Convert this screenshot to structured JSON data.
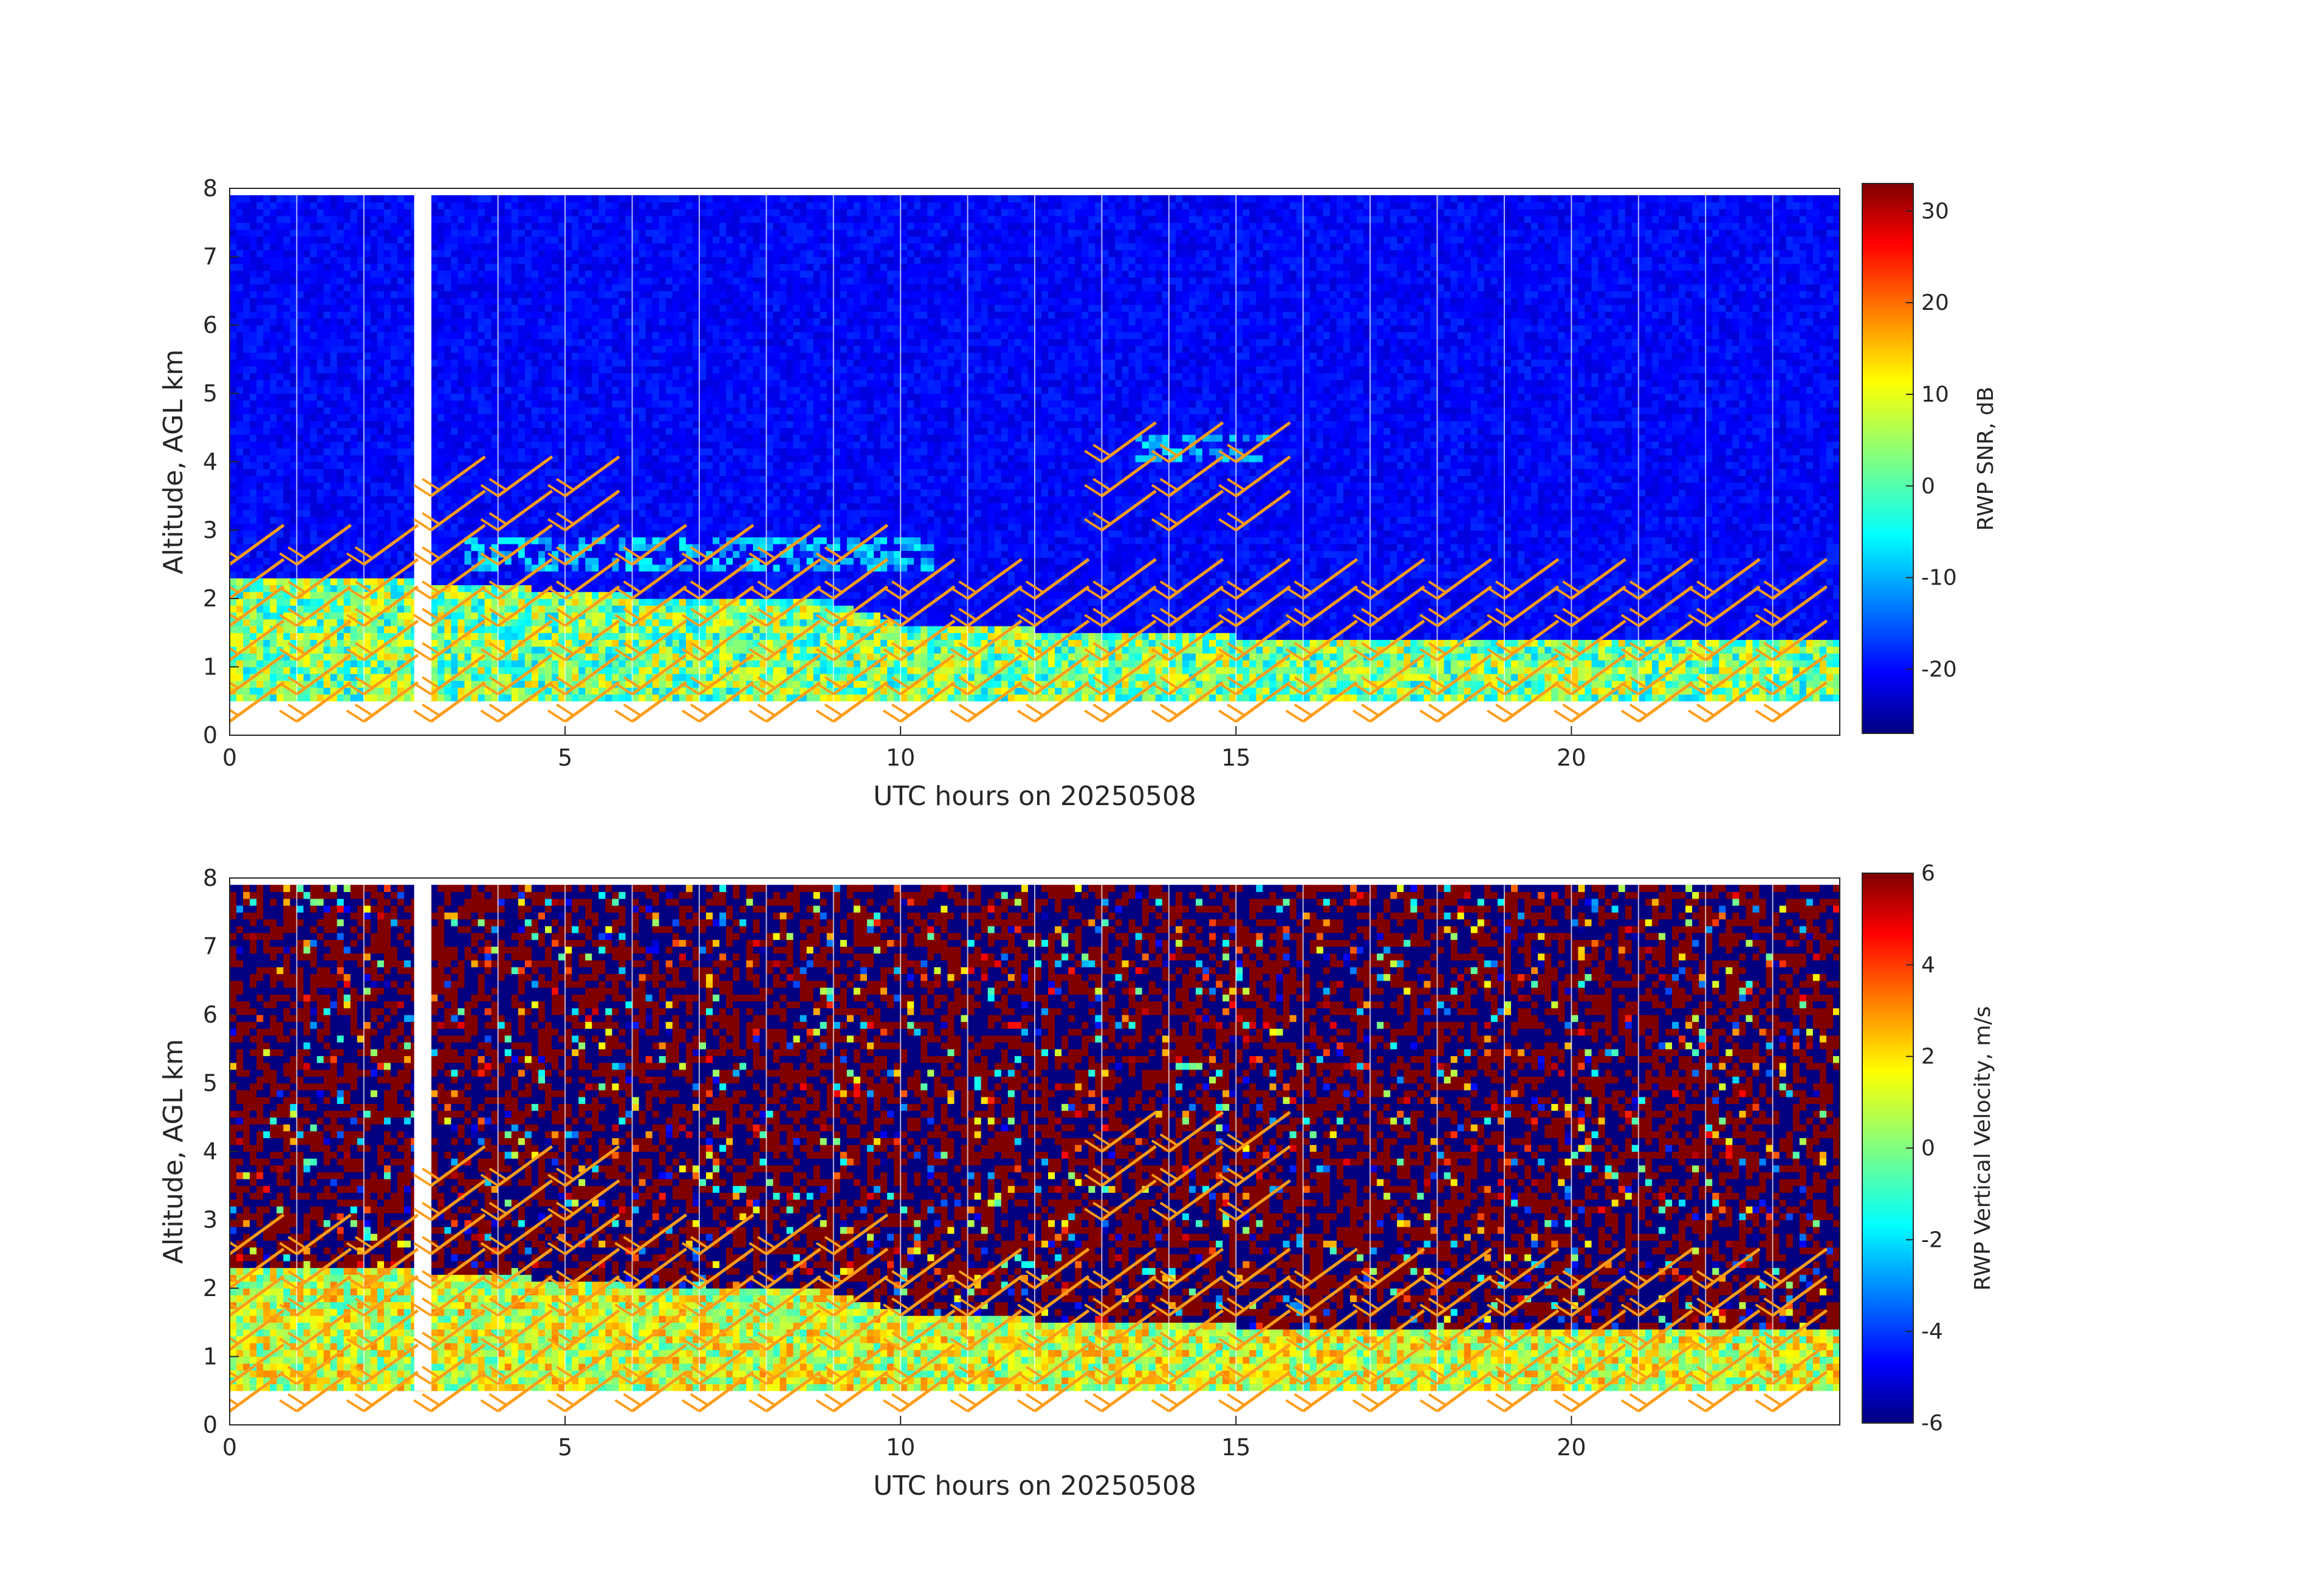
{
  "chart_data": [
    {
      "type": "heatmap",
      "variable": "snr",
      "xlabel": "UTC hours on 20250508",
      "ylabel": "Altitude, AGL km",
      "xlim": [
        0,
        24
      ],
      "ylim": [
        0,
        8
      ],
      "xticks": [
        "0",
        "5",
        "10",
        "15",
        "20"
      ],
      "yticks": [
        "0",
        "1",
        "2",
        "3",
        "4",
        "5",
        "6",
        "7",
        "8"
      ],
      "colorbar": {
        "label": "RWP SNR, dB",
        "range": [
          -27,
          33
        ],
        "ticks": [
          "-20",
          "-10",
          "0",
          "10",
          "20",
          "30"
        ]
      },
      "colormap": "jet",
      "overlay": "wind barbs (orange)",
      "data_gaps_hours": [
        2.75,
        3.0
      ],
      "boundary_layer_top_km": [
        [
          0,
          2.3
        ],
        [
          3,
          2.2
        ],
        [
          6,
          2.0
        ],
        [
          9,
          1.9
        ],
        [
          10,
          1.6
        ],
        [
          12,
          1.5
        ],
        [
          15,
          1.4
        ],
        [
          18,
          1.4
        ],
        [
          21,
          1.4
        ],
        [
          24,
          1.4
        ]
      ],
      "elevated_layers_km": [
        {
          "hours": [
            3.5,
            10.5
          ],
          "altitude_km": [
            2.4,
            2.9
          ]
        },
        {
          "hours": [
            13.5,
            15.5
          ],
          "altitude_km": [
            4.0,
            4.3
          ]
        }
      ]
    },
    {
      "type": "heatmap",
      "variable": "vertical_velocity",
      "xlabel": "UTC hours on 20250508",
      "ylabel": "Altitude, AGL km",
      "xlim": [
        0,
        24
      ],
      "ylim": [
        0,
        8
      ],
      "xticks": [
        "0",
        "5",
        "10",
        "15",
        "20"
      ],
      "yticks": [
        "0",
        "1",
        "2",
        "3",
        "4",
        "5",
        "6",
        "7",
        "8"
      ],
      "colorbar": {
        "label": "RWP Vertical Velocity, m/s",
        "range": [
          -6,
          6
        ],
        "ticks": [
          "-6",
          "-4",
          "-2",
          "0",
          "2",
          "4",
          "6"
        ]
      },
      "colormap": "jet",
      "overlay": "wind barbs (orange)"
    }
  ],
  "colors": {
    "barb": "#ff9d1a",
    "axis": "#262626",
    "background": "#ffffff"
  }
}
